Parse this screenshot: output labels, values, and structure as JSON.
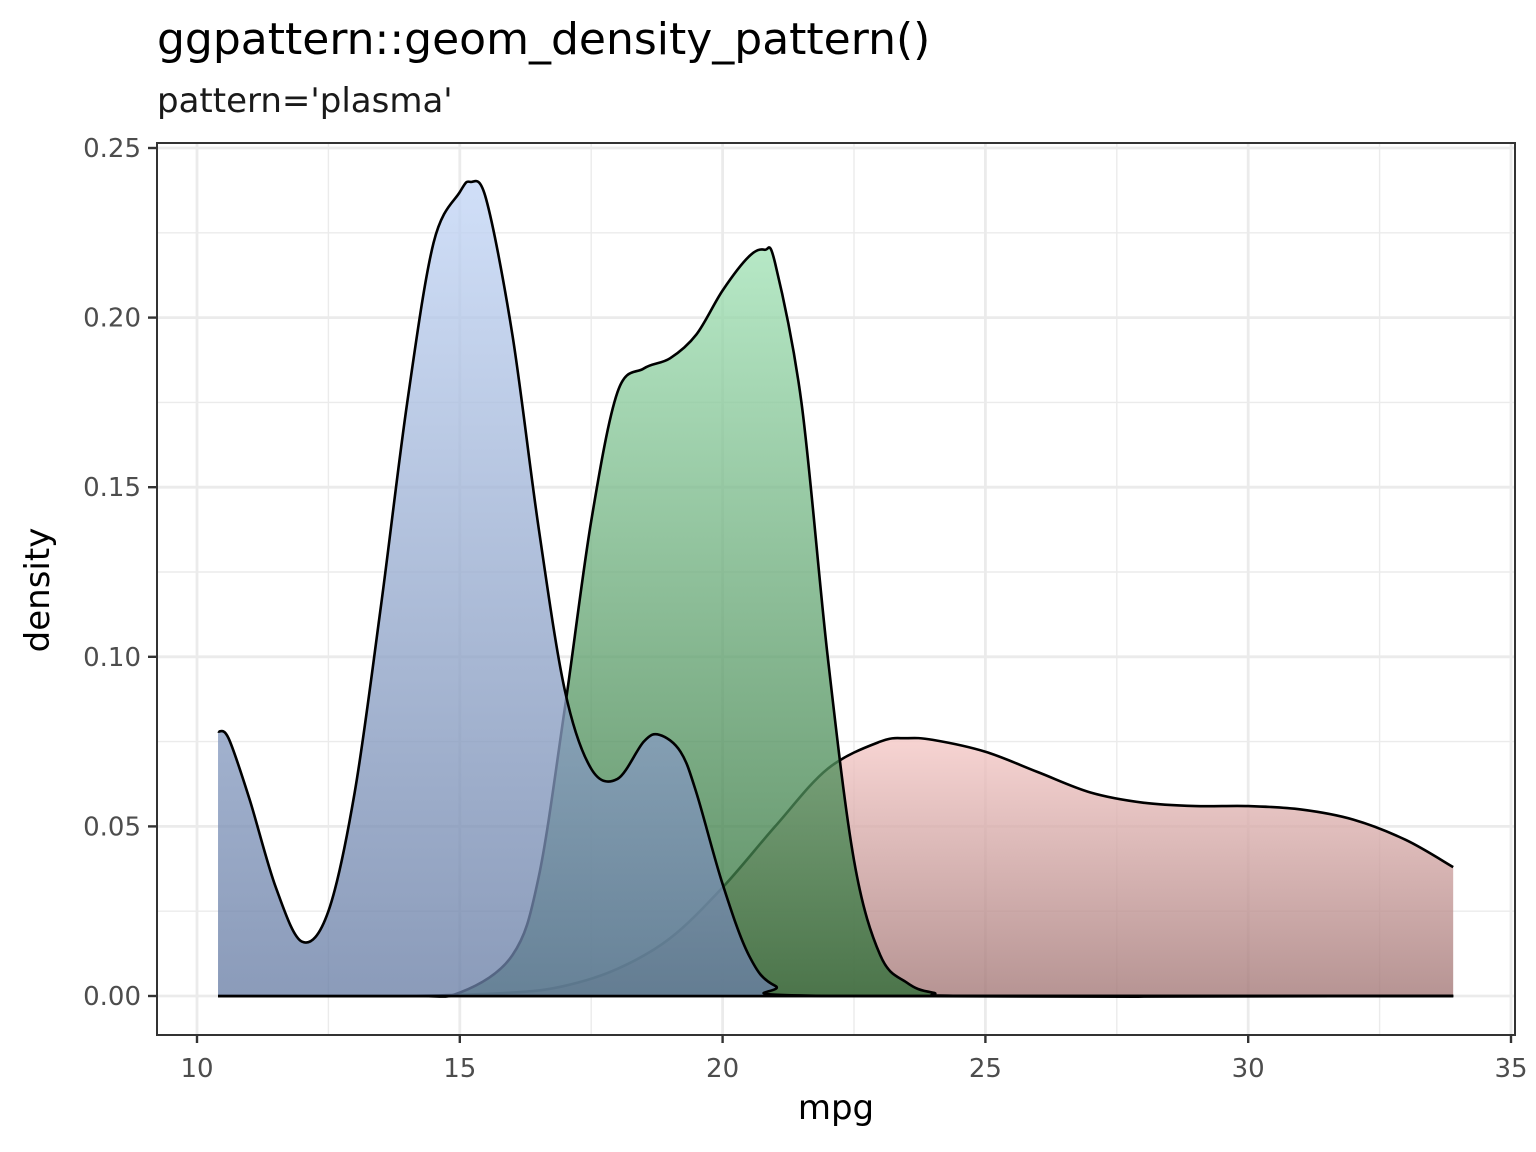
{
  "title": "ggpattern::geom_density_pattern()",
  "subtitle": "pattern='plasma'",
  "xlabel": "mpg",
  "ylabel": "density",
  "colors": {
    "blue_top": "#c3d6f6",
    "blue_bottom": "#6a7fa6",
    "green_top": "#a2e2b6",
    "green_bottom": "#2e6c36",
    "pink_top": "#f5c8c6",
    "pink_bottom": "#a27675",
    "grid": "#ebebeb",
    "panel_border": "#333333"
  },
  "chart_data": {
    "type": "area",
    "title": "ggpattern::geom_density_pattern()",
    "subtitle": "pattern='plasma'",
    "xlabel": "mpg",
    "ylabel": "density",
    "xlim": [
      9.25,
      35.07
    ],
    "ylim": [
      -0.0115,
      0.2535
    ],
    "x_ticks": [
      10,
      15,
      20,
      25,
      30,
      35
    ],
    "x_tick_labels": [
      "10",
      "15",
      "20",
      "25",
      "30",
      "35"
    ],
    "y_ticks": [
      0.0,
      0.05,
      0.1,
      0.15,
      0.2,
      0.25
    ],
    "y_tick_labels": [
      "0.00",
      "0.05",
      "0.10",
      "0.15",
      "0.20",
      "0.25"
    ],
    "grid": true,
    "legend": "none",
    "series": [
      {
        "name": "pink",
        "x": [
          10.4,
          12,
          14,
          16,
          17,
          18,
          19,
          20,
          21,
          22,
          23,
          23.5,
          24,
          25,
          26,
          27,
          28,
          29,
          30,
          31,
          32,
          33,
          33.9
        ],
        "values": [
          0.0,
          0.0,
          0.0,
          0.001,
          0.003,
          0.008,
          0.017,
          0.032,
          0.05,
          0.067,
          0.075,
          0.076,
          0.0755,
          0.072,
          0.066,
          0.06,
          0.057,
          0.056,
          0.056,
          0.055,
          0.052,
          0.046,
          0.038
        ]
      },
      {
        "name": "green",
        "x": [
          10.4,
          14,
          15,
          16,
          16.5,
          17,
          17.5,
          18,
          18.5,
          19,
          19.5,
          20,
          20.5,
          20.8,
          21,
          21.5,
          22,
          22.5,
          23,
          23.5,
          24,
          25,
          33.9
        ],
        "values": [
          0.0,
          0.0,
          0.001,
          0.012,
          0.035,
          0.085,
          0.14,
          0.178,
          0.185,
          0.188,
          0.195,
          0.208,
          0.218,
          0.22,
          0.216,
          0.175,
          0.1,
          0.04,
          0.012,
          0.004,
          0.001,
          0.0,
          0.0
        ]
      },
      {
        "name": "blue",
        "x": [
          10.4,
          10.6,
          11,
          11.5,
          12,
          12.5,
          13,
          13.5,
          14,
          14.5,
          15,
          15.2,
          15.5,
          16,
          16.5,
          17,
          17.5,
          18,
          18.5,
          18.8,
          19.2,
          19.5,
          20,
          20.5,
          21,
          22,
          33.9
        ],
        "values": [
          0.078,
          0.076,
          0.058,
          0.032,
          0.016,
          0.025,
          0.06,
          0.115,
          0.175,
          0.222,
          0.237,
          0.24,
          0.235,
          0.195,
          0.138,
          0.09,
          0.067,
          0.064,
          0.075,
          0.077,
          0.072,
          0.06,
          0.033,
          0.012,
          0.003,
          0.0,
          0.0
        ]
      }
    ]
  }
}
